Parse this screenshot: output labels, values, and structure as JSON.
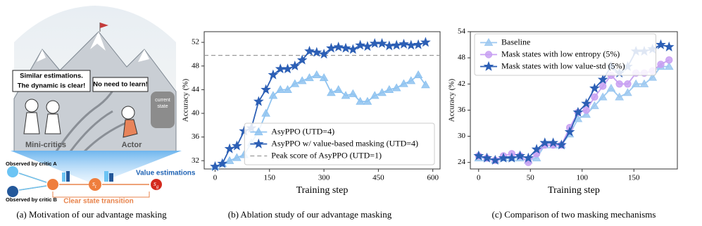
{
  "panel_a": {
    "bubble_left": [
      "Similar estimations.",
      "The dynamic is clear!"
    ],
    "bubble_right": "No need to learn!",
    "sign": [
      "current",
      "state"
    ],
    "left_label": "Mini-critics",
    "right_label": "Actor",
    "observed_a": "Observed by critic A",
    "observed_b": "Observed by critic B",
    "value_estimations": "Value estimations",
    "state_t": {
      "label": "s",
      "subscript": "t"
    },
    "state_g": {
      "label": "s",
      "subscript": "g"
    },
    "transition": "Clear state transition"
  },
  "captions": [
    "(a) Motivation of our advantage masking",
    "(b) Ablation study of our advantage masking",
    "(c) Comparison of two masking mechanisms"
  ],
  "chart_data": [
    {
      "type": "line",
      "x_label": "Training step",
      "y_label": "Accuracy (%)",
      "x": [
        0,
        20,
        40,
        60,
        80,
        100,
        120,
        140,
        160,
        180,
        200,
        220,
        240,
        260,
        280,
        300,
        320,
        340,
        360,
        380,
        400,
        420,
        440,
        460,
        480,
        500,
        520,
        540,
        560,
        580
      ],
      "xlim": [
        -30,
        620
      ],
      "xticks": [
        0,
        150,
        300,
        450,
        600
      ],
      "ylim": [
        30.6,
        53.8
      ],
      "yticks": [
        32,
        36,
        40,
        44,
        48,
        52
      ],
      "legend": "lower right",
      "series": [
        {
          "name": "AsyPPO (UTD=4)",
          "color": "#8fc3f0",
          "marker": "triangle",
          "values": [
            31,
            31.5,
            32,
            32.5,
            33,
            35,
            37,
            40,
            43,
            44,
            44,
            45,
            45.5,
            46,
            46.5,
            46,
            43.5,
            44,
            43,
            43.3,
            42,
            42,
            43,
            43.5,
            44,
            44.3,
            45,
            45.5,
            46.5,
            44.8
          ]
        },
        {
          "name": "AsyPPO w/ value-based masking (UTD=4)",
          "color": "#2c5fb5",
          "marker": "star",
          "values": [
            31,
            31.5,
            34,
            34.5,
            37,
            37.5,
            42,
            44,
            46.5,
            47.5,
            47.5,
            48,
            49,
            50.5,
            50.3,
            50,
            51,
            51.2,
            51,
            50.8,
            51.5,
            51.3,
            51.8,
            51.8,
            51.4,
            51.5,
            51.7,
            51.5,
            51.6,
            52
          ]
        }
      ],
      "hlines": [
        {
          "name": "Peak score of AsyPPO (UTD=1)",
          "value": 49.8,
          "color": "#999999"
        }
      ]
    },
    {
      "type": "line",
      "x_label": "Training step",
      "y_label": "Accuracy (%)",
      "x": [
        0,
        8,
        16,
        24,
        32,
        40,
        48,
        56,
        64,
        72,
        80,
        88,
        96,
        104,
        112,
        120,
        128,
        136,
        144,
        152,
        160,
        168,
        176,
        184
      ],
      "xlim": [
        -8,
        192
      ],
      "xticks": [
        0,
        50,
        100,
        150
      ],
      "ylim": [
        22.5,
        54
      ],
      "yticks": [
        24,
        30,
        36,
        42,
        48,
        54
      ],
      "legend": "upper left",
      "series": [
        {
          "name": "Baseline",
          "color": "#9cc8f0",
          "marker": "triangle",
          "values": [
            25,
            25,
            24.5,
            25,
            25,
            25,
            24.5,
            25,
            28,
            28,
            28,
            30.5,
            34,
            35,
            37,
            39,
            41,
            39,
            40,
            42,
            42,
            43.5,
            46,
            46
          ]
        },
        {
          "name": "Mask states with low entropy (5%)",
          "color": "#c8a0f2",
          "marker": "circle",
          "values": [
            25.5,
            25,
            24.5,
            25.5,
            26,
            25.5,
            24,
            26,
            28,
            28,
            28,
            32,
            35.5,
            36,
            39,
            41.5,
            44,
            42,
            42,
            44.5,
            44.5,
            45,
            46.5,
            47.5
          ]
        },
        {
          "name": "Mask states with low value-std (5%)",
          "color": "#2c5fb5",
          "marker": "star",
          "values": [
            25.5,
            25,
            24.5,
            25,
            25,
            25.5,
            25,
            27,
            28.5,
            28.5,
            28,
            31,
            35.5,
            37.5,
            41,
            43,
            46,
            44.5,
            46,
            49.5,
            49.5,
            50,
            51,
            50.5
          ]
        }
      ]
    }
  ]
}
